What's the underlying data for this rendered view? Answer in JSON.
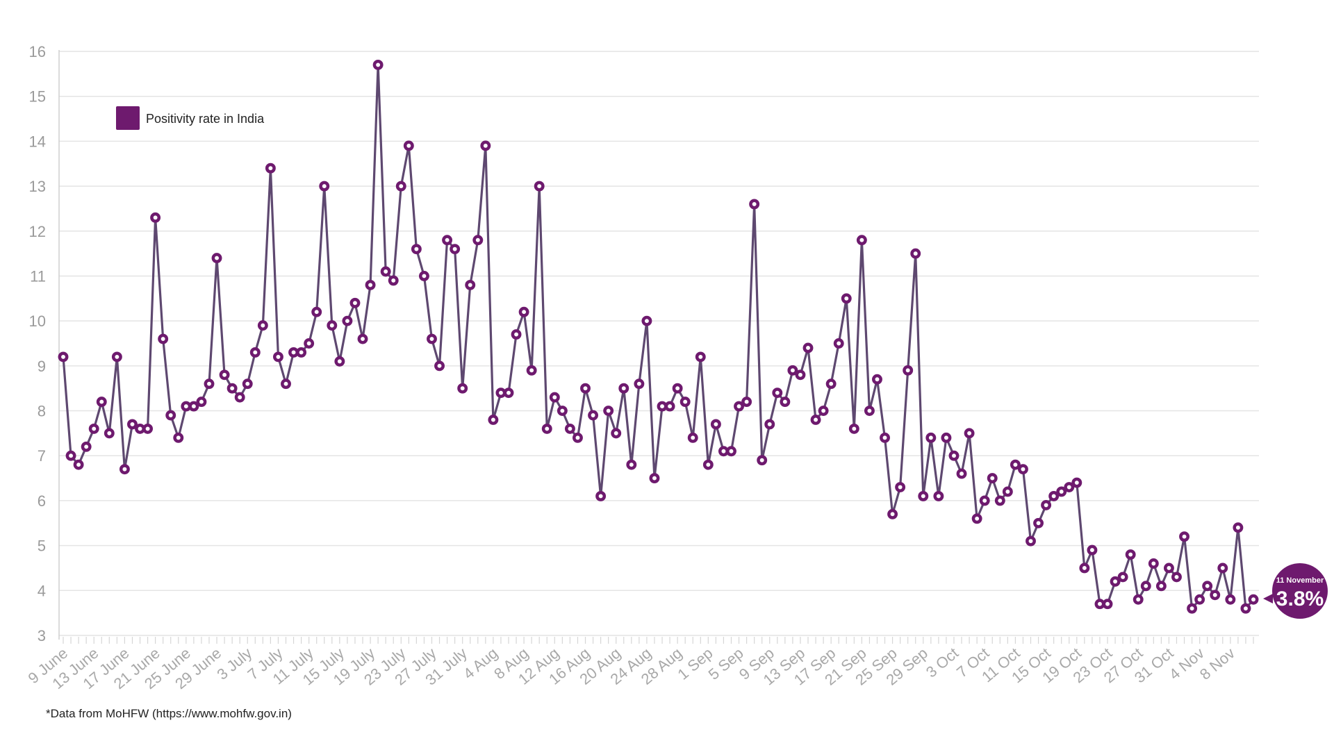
{
  "colors": {
    "series": "#6e1a6e",
    "line": "#5e4870",
    "grid": "#e4e4e4",
    "callout": "#6e1a6e"
  },
  "footnote": "*Data from MoHFW (https://www.mohfw.gov.in)",
  "callout": {
    "date_label": "11 November",
    "value_label": "3.8%"
  },
  "chart_data": {
    "type": "line",
    "title": "",
    "xlabel": "",
    "ylabel": "",
    "ylim": [
      3,
      16
    ],
    "y_ticks": [
      3,
      4,
      5,
      6,
      7,
      8,
      9,
      10,
      11,
      12,
      13,
      14,
      15,
      16
    ],
    "grid": true,
    "legend_position": "top-left",
    "x_start_label": "9 June",
    "x_tick_every": 4,
    "x_tick_labels": [
      "9 June",
      "13 June",
      "17 June",
      "21 June",
      "25 June",
      "29 June",
      "3 July",
      "7 July",
      "11 July",
      "15 July",
      "19 July",
      "23 July",
      "27 July",
      "31 July",
      "4 Aug",
      "8 Aug",
      "12 Aug",
      "16 Aug",
      "20 Aug",
      "24 Aug",
      "28 Aug",
      "1 Sep",
      "5 Sep",
      "9 Sep",
      "13 Sep",
      "17 Sep",
      "21 Sep",
      "25 Sep",
      "29 Sep",
      "3 Oct",
      "7 Oct",
      "11 Oct",
      "15 Oct",
      "19 Oct",
      "23 Oct",
      "27 Oct",
      "31 Oct",
      "4 Nov",
      "8 Nov"
    ],
    "series": [
      {
        "name": "Positivity rate in India",
        "values": [
          9.2,
          7.0,
          6.8,
          7.2,
          7.6,
          8.2,
          7.5,
          9.2,
          6.7,
          7.7,
          7.6,
          7.6,
          12.3,
          9.6,
          7.9,
          7.4,
          8.1,
          8.1,
          8.2,
          8.6,
          11.4,
          8.8,
          8.5,
          8.3,
          8.6,
          9.3,
          9.9,
          13.4,
          9.2,
          8.6,
          9.3,
          9.3,
          9.5,
          10.2,
          13.0,
          9.9,
          9.1,
          10.0,
          10.4,
          9.6,
          10.8,
          15.7,
          11.1,
          10.9,
          13.0,
          13.9,
          11.6,
          11.0,
          9.6,
          9.0,
          11.8,
          11.6,
          8.5,
          10.8,
          11.8,
          13.9,
          7.8,
          8.4,
          8.4,
          9.7,
          10.2,
          8.9,
          13.0,
          7.6,
          8.3,
          8.0,
          7.6,
          7.4,
          8.5,
          7.9,
          6.1,
          8.0,
          7.5,
          8.5,
          6.8,
          8.6,
          10.0,
          6.5,
          8.1,
          8.1,
          8.5,
          8.2,
          7.4,
          9.2,
          6.8,
          7.7,
          7.1,
          7.1,
          8.1,
          8.2,
          12.6,
          6.9,
          7.7,
          8.4,
          8.2,
          8.9,
          8.8,
          9.4,
          7.8,
          8.0,
          8.6,
          9.5,
          10.5,
          7.6,
          11.8,
          8.0,
          8.7,
          7.4,
          5.7,
          6.3,
          8.9,
          11.5,
          6.1,
          7.4,
          6.1,
          7.4,
          7.0,
          6.6,
          7.5,
          5.6,
          6.0,
          6.5,
          6.0,
          6.2,
          6.8,
          6.7,
          5.1,
          5.5,
          5.9,
          6.1,
          6.2,
          6.3,
          6.4,
          4.5,
          4.9,
          3.7,
          3.7,
          4.2,
          4.3,
          4.8,
          3.8,
          4.1,
          4.6,
          4.1,
          4.5,
          4.3,
          5.2,
          3.6,
          3.8,
          4.1,
          3.9,
          4.5,
          3.8,
          5.4,
          3.6,
          3.8
        ]
      }
    ]
  }
}
